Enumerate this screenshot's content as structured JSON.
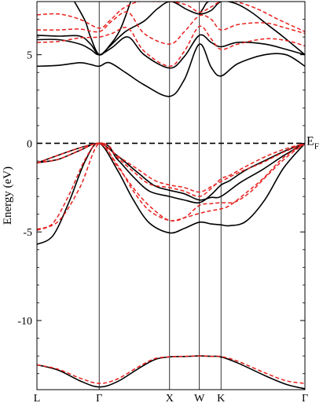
{
  "chart_data": {
    "type": "line",
    "title": "",
    "ylabel": "Energy (eV)",
    "xlabel": "",
    "ylim": [
      -13.9,
      8.0
    ],
    "xlim": [
      0,
      1
    ],
    "high_symmetry_points": [
      {
        "label": "L",
        "x": 0.0
      },
      {
        "label": "Γ",
        "x": 0.2323
      },
      {
        "label": "X",
        "x": 0.4949
      },
      {
        "label": "W",
        "x": 0.6061
      },
      {
        "label": "K",
        "x": 0.6869
      },
      {
        "label": "Γ",
        "x": 1.0
      }
    ],
    "y_ticks": [
      {
        "label": "5",
        "value": 5
      },
      {
        "label": "0",
        "value": 0
      },
      {
        "label": "-5",
        "value": -5
      },
      {
        "label": "-10",
        "value": -10
      }
    ],
    "fermi_level": {
      "label": "E",
      "subscript": "F",
      "value": 0
    },
    "colors": {
      "solid": "#000000",
      "dashed": "#e8201e",
      "fermi": "#000000"
    },
    "series": [
      {
        "style": "solid",
        "x": [
          0,
          0.08,
          0.16,
          0.2323,
          0.3,
          0.38,
          0.44,
          0.4949,
          0.55,
          0.6061,
          0.65,
          0.6869,
          0.75,
          0.85,
          0.93,
          1.0
        ],
        "y": [
          -12.5,
          -12.8,
          -13.4,
          -13.75,
          -13.45,
          -12.7,
          -12.2,
          -12.05,
          -12.03,
          -12.0,
          -12.02,
          -12.05,
          -12.4,
          -13.1,
          -13.6,
          -13.85
        ]
      },
      {
        "style": "solid",
        "x": [
          0,
          0.06,
          0.12,
          0.18,
          0.2323,
          0.3,
          0.36,
          0.42,
          0.4949,
          0.55,
          0.6061,
          0.65,
          0.6869,
          0.72,
          0.78,
          0.85,
          0.92,
          1.0
        ],
        "y": [
          -5.7,
          -5.2,
          -3.3,
          -1.0,
          0.0,
          -1.5,
          -3.2,
          -4.5,
          -5.05,
          -4.8,
          -4.45,
          -4.55,
          -4.6,
          -4.65,
          -4.4,
          -3.2,
          -1.4,
          0.0
        ]
      },
      {
        "style": "solid",
        "x": [
          0,
          0.08,
          0.16,
          0.2323,
          0.3,
          0.38,
          0.44,
          0.4949,
          0.55,
          0.6061,
          0.65,
          0.6869,
          0.76,
          0.84,
          0.92,
          1.0
        ],
        "y": [
          -1.1,
          -0.9,
          -0.4,
          0.0,
          -0.7,
          -1.7,
          -2.4,
          -2.65,
          -2.85,
          -3.2,
          -3.05,
          -3.0,
          -2.2,
          -1.5,
          -0.7,
          0.0
        ]
      },
      {
        "style": "solid",
        "x": [
          0,
          0.2323,
          0.3,
          0.36,
          0.42,
          0.4949,
          0.55,
          0.6061,
          0.65,
          0.6869,
          0.72,
          0.78,
          0.86,
          0.93,
          1.0
        ],
        "y": [
          -1.1,
          0.0,
          -0.9,
          -1.9,
          -2.7,
          -3.0,
          -3.2,
          -3.35,
          -2.9,
          -2.35,
          -2.1,
          -1.5,
          -0.9,
          -0.4,
          0.0
        ]
      },
      {
        "style": "solid",
        "x": [
          0,
          0.08,
          0.16,
          0.2,
          0.2323,
          0.27,
          0.33,
          0.4,
          0.4949,
          0.55,
          0.6061,
          0.65,
          0.6869,
          0.75,
          0.85,
          0.93,
          1.0
        ],
        "y": [
          4.35,
          4.4,
          4.55,
          4.45,
          4.35,
          4.55,
          4.0,
          3.3,
          2.65,
          3.6,
          5.6,
          4.3,
          3.8,
          4.5,
          5.0,
          5.0,
          4.35
        ]
      },
      {
        "style": "solid",
        "x": [
          0,
          0.08,
          0.16,
          0.2,
          0.2323,
          0.28,
          0.34,
          0.4,
          0.4949,
          0.55,
          0.6061,
          0.65,
          0.6869,
          0.75,
          0.85,
          0.93,
          1.0
        ],
        "y": [
          5.85,
          5.85,
          5.6,
          5.3,
          5.0,
          5.4,
          6.0,
          5.0,
          4.25,
          4.9,
          6.1,
          5.7,
          5.45,
          5.7,
          5.6,
          5.3,
          5.0
        ]
      },
      {
        "style": "solid",
        "x": [
          0,
          0.08,
          0.16,
          0.2,
          0.2323,
          0.27,
          0.33,
          0.4,
          0.45,
          0.5,
          0.56,
          0.6061,
          0.65,
          0.6869,
          0.74,
          0.8,
          0.86,
          0.92,
          1.0
        ],
        "y": [
          6.1,
          6.05,
          6.05,
          5.6,
          5.0,
          5.45,
          6.3,
          6.9,
          7.6,
          8.0,
          7.55,
          7.3,
          7.5,
          8.0,
          7.9,
          7.4,
          6.7,
          6.0,
          5.0
        ]
      },
      {
        "style": "solid",
        "x": [
          0.14,
          0.18,
          0.2,
          0.2323,
          0.27,
          0.31,
          0.35
        ],
        "y": [
          8.0,
          6.9,
          6.0,
          5.0,
          5.5,
          6.4,
          8.0
        ]
      },
      {
        "style": "solid",
        "x": [
          0.6061,
          0.62,
          0.64,
          0.6869
        ],
        "y": [
          7.3,
          7.6,
          8.0,
          8.0
        ]
      },
      {
        "style": "dashed",
        "x": [
          0,
          0.08,
          0.16,
          0.2323,
          0.3,
          0.38,
          0.44,
          0.4949,
          0.55,
          0.6061,
          0.65,
          0.6869,
          0.75,
          0.85,
          0.93,
          1.0
        ],
        "y": [
          -12.5,
          -12.75,
          -13.25,
          -13.55,
          -13.3,
          -12.6,
          -12.15,
          -12.05,
          -12.02,
          -12.0,
          -12.02,
          -12.03,
          -12.3,
          -12.95,
          -13.4,
          -13.55
        ]
      },
      {
        "style": "dashed",
        "x": [
          0,
          0.06,
          0.12,
          0.18,
          0.2323,
          0.3,
          0.36,
          0.42,
          0.4949,
          0.55,
          0.6061,
          0.65,
          0.6869,
          0.72,
          0.78,
          0.85,
          0.92,
          1.0
        ],
        "y": [
          -4.9,
          -4.5,
          -2.9,
          -0.9,
          0.0,
          -1.2,
          -2.7,
          -3.8,
          -4.35,
          -4.2,
          -3.95,
          -3.8,
          -3.7,
          -3.5,
          -2.8,
          -1.9,
          -0.8,
          0.0
        ]
      },
      {
        "style": "dashed",
        "x": [
          0,
          0.08,
          0.16,
          0.2323,
          0.3,
          0.38,
          0.44,
          0.4949,
          0.55,
          0.6061,
          0.65,
          0.6869,
          0.76,
          0.84,
          0.92,
          1.0
        ],
        "y": [
          -1.1,
          -0.9,
          -0.4,
          0.0,
          -0.7,
          -1.5,
          -2.1,
          -2.35,
          -2.5,
          -2.75,
          -2.45,
          -2.15,
          -1.6,
          -1.1,
          -0.5,
          0.0
        ]
      },
      {
        "style": "dashed",
        "x": [
          0,
          0.2323,
          0.3,
          0.36,
          0.42,
          0.4949,
          0.55,
          0.6061,
          0.65,
          0.6869,
          0.72,
          0.78,
          0.86,
          0.93,
          1.0
        ],
        "y": [
          -1.1,
          0.0,
          -0.8,
          -1.6,
          -2.3,
          -2.5,
          -2.7,
          -3.0,
          -2.55,
          -2.0,
          -1.8,
          -1.3,
          -0.7,
          -0.3,
          0.0
        ]
      },
      {
        "style": "dashed",
        "x": [
          0,
          0.08,
          0.16,
          0.2323,
          0.3,
          0.38,
          0.44,
          0.4949,
          0.55,
          0.6061,
          0.65,
          0.6869,
          0.74,
          0.8,
          0.86,
          0.93,
          1.0
        ],
        "y": [
          -4.85,
          -4.4,
          -2.5,
          0.0,
          -1.3,
          -2.9,
          -3.8,
          -4.35,
          -4.2,
          -3.5,
          -3.4,
          -3.35,
          -3.3,
          -2.7,
          -1.8,
          -0.8,
          0.0
        ]
      },
      {
        "style": "dashed",
        "x": [
          0,
          0.08,
          0.16,
          0.2323,
          0.28,
          0.34,
          0.4,
          0.4949,
          0.55,
          0.6061,
          0.65,
          0.6869,
          0.75,
          0.85,
          0.93,
          1.0
        ],
        "y": [
          5.7,
          5.75,
          5.95,
          6.0,
          6.2,
          6.5,
          5.2,
          4.35,
          5.2,
          6.6,
          5.9,
          5.3,
          5.6,
          5.9,
          5.8,
          5.5
        ]
      },
      {
        "style": "dashed",
        "x": [
          0,
          0.08,
          0.16,
          0.2323,
          0.28,
          0.34,
          0.4,
          0.4949,
          0.55,
          0.6061,
          0.65,
          0.6869,
          0.75,
          0.85,
          0.93,
          1.0
        ],
        "y": [
          6.4,
          6.4,
          6.45,
          6.3,
          6.9,
          7.4,
          6.2,
          5.6,
          6.3,
          7.2,
          7.0,
          6.4,
          6.7,
          6.8,
          6.5,
          6.2
        ]
      },
      {
        "style": "dashed",
        "x": [
          0,
          0.08,
          0.16,
          0.2323,
          0.27,
          0.32,
          0.38,
          0.44,
          0.5,
          0.56,
          0.6061,
          0.65,
          0.6869,
          0.74,
          0.82,
          0.9,
          1.0
        ],
        "y": [
          7.25,
          7.3,
          7.0,
          6.5,
          6.9,
          7.6,
          8.0,
          8.0,
          8.0,
          7.8,
          7.4,
          7.7,
          8.0,
          8.0,
          7.6,
          7.0,
          6.3
        ]
      }
    ]
  }
}
